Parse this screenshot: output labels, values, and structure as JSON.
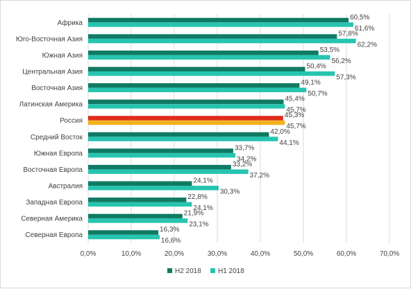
{
  "chart_data": {
    "type": "bar",
    "orientation": "horizontal",
    "categories": [
      "Африка",
      "Юго-Восточная Азия",
      "Южная Азия",
      "Центральная Азия",
      "Восточная Азия",
      "Латинская Америка",
      "Россия",
      "Средний Восток",
      "Южная Европа",
      "Восточная Европа",
      "Австралия",
      "Западная Европа",
      "Северная Америка",
      "Северная Европа"
    ],
    "series": [
      {
        "name": "H2 2018",
        "color": "#107a63",
        "values": [
          60.5,
          57.8,
          53.5,
          50.4,
          49.1,
          45.4,
          45.3,
          42.0,
          33.7,
          33.2,
          24.1,
          22.8,
          21.9,
          16.3
        ],
        "labels": [
          "60,5%",
          "57,8%",
          "53,5%",
          "50,4%",
          "49,1%",
          "45,4%",
          "45,3%",
          "42,0%",
          "33,7%",
          "33,2%",
          "24,1%",
          "22,8%",
          "21,9%",
          "16,3%"
        ]
      },
      {
        "name": "H1 2018",
        "color": "#27c4b0",
        "values": [
          61.6,
          62.2,
          56.2,
          57.3,
          50.7,
          45.7,
          45.7,
          44.1,
          34.2,
          37.2,
          30.3,
          24.1,
          23.1,
          16.6
        ],
        "labels": [
          "61,6%",
          "62,2%",
          "56,2%",
          "57,3%",
          "50,7%",
          "45,7%",
          "45,7%",
          "44,1%",
          "34,2%",
          "37,2%",
          "30,3%",
          "24,1%",
          "23,1%",
          "16,6%"
        ]
      }
    ],
    "highlight": {
      "category": "Россия",
      "h2_color": "#e02b1a",
      "h1_color": "#f2b21e"
    },
    "xlim": [
      0,
      70
    ],
    "xticks": [
      "0,0%",
      "10,0%",
      "20,0%",
      "30,0%",
      "40,0%",
      "50,0%",
      "60,0%",
      "70,0%"
    ],
    "grid": true,
    "legend_position": "bottom",
    "legend": [
      {
        "label": "H2 2018",
        "color": "#107a63"
      },
      {
        "label": "H1 2018",
        "color": "#27c4b0"
      }
    ],
    "title": "",
    "xlabel": "",
    "ylabel": ""
  }
}
